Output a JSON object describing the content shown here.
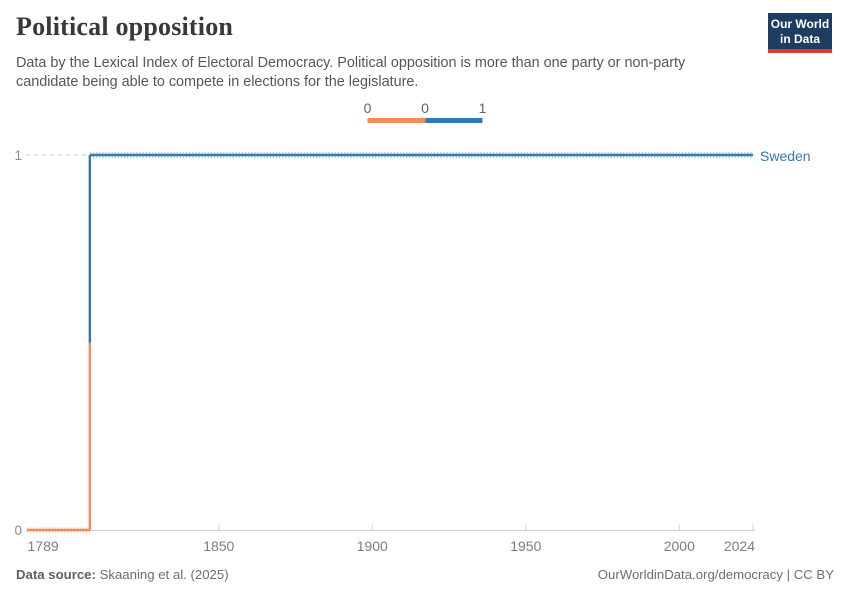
{
  "header": {
    "title": "Political opposition",
    "subtitle": "Data by the Lexical Index of Electoral Democracy. Political opposition is more than one party or non-party candidate being able to compete in elections for the legislature."
  },
  "logo": {
    "line1": "Our World",
    "line2": "in Data",
    "bg_color": "#1d3d63",
    "bar_color": "#d93a34"
  },
  "chart_data": {
    "type": "line",
    "subtype": "step",
    "title": "Political opposition",
    "entity": "Sweden",
    "x_range": [
      1789,
      2024
    ],
    "x_ticks": [
      "1789",
      "1850",
      "1900",
      "1950",
      "2000",
      "2024"
    ],
    "y_axis": {
      "top_label": "1",
      "bottom_label": "0",
      "ticks": [
        0,
        1
      ]
    },
    "series": [
      {
        "name": "Sweden",
        "step_segments": [
          {
            "start_year": 1789,
            "end_year": 1808,
            "value": 0
          },
          {
            "start_year": 1808,
            "end_year": 2024,
            "value": 1
          }
        ]
      }
    ],
    "value_colors": {
      "0": "#ef8c5b",
      "1": "#3679af"
    },
    "legend": {
      "edge_labels": [
        "0",
        "0",
        "1"
      ],
      "segment_values": [
        0,
        1
      ]
    },
    "grid": {
      "dashed_gridline_at_value": 1,
      "grid_color": "#c9c9c9",
      "axis_color": "#cfcfcf"
    }
  },
  "footer": {
    "source_label": "Data source:",
    "source_value": "Skaaning et al. (2025)",
    "attribution": "OurWorldinData.org/democracy | CC BY"
  }
}
